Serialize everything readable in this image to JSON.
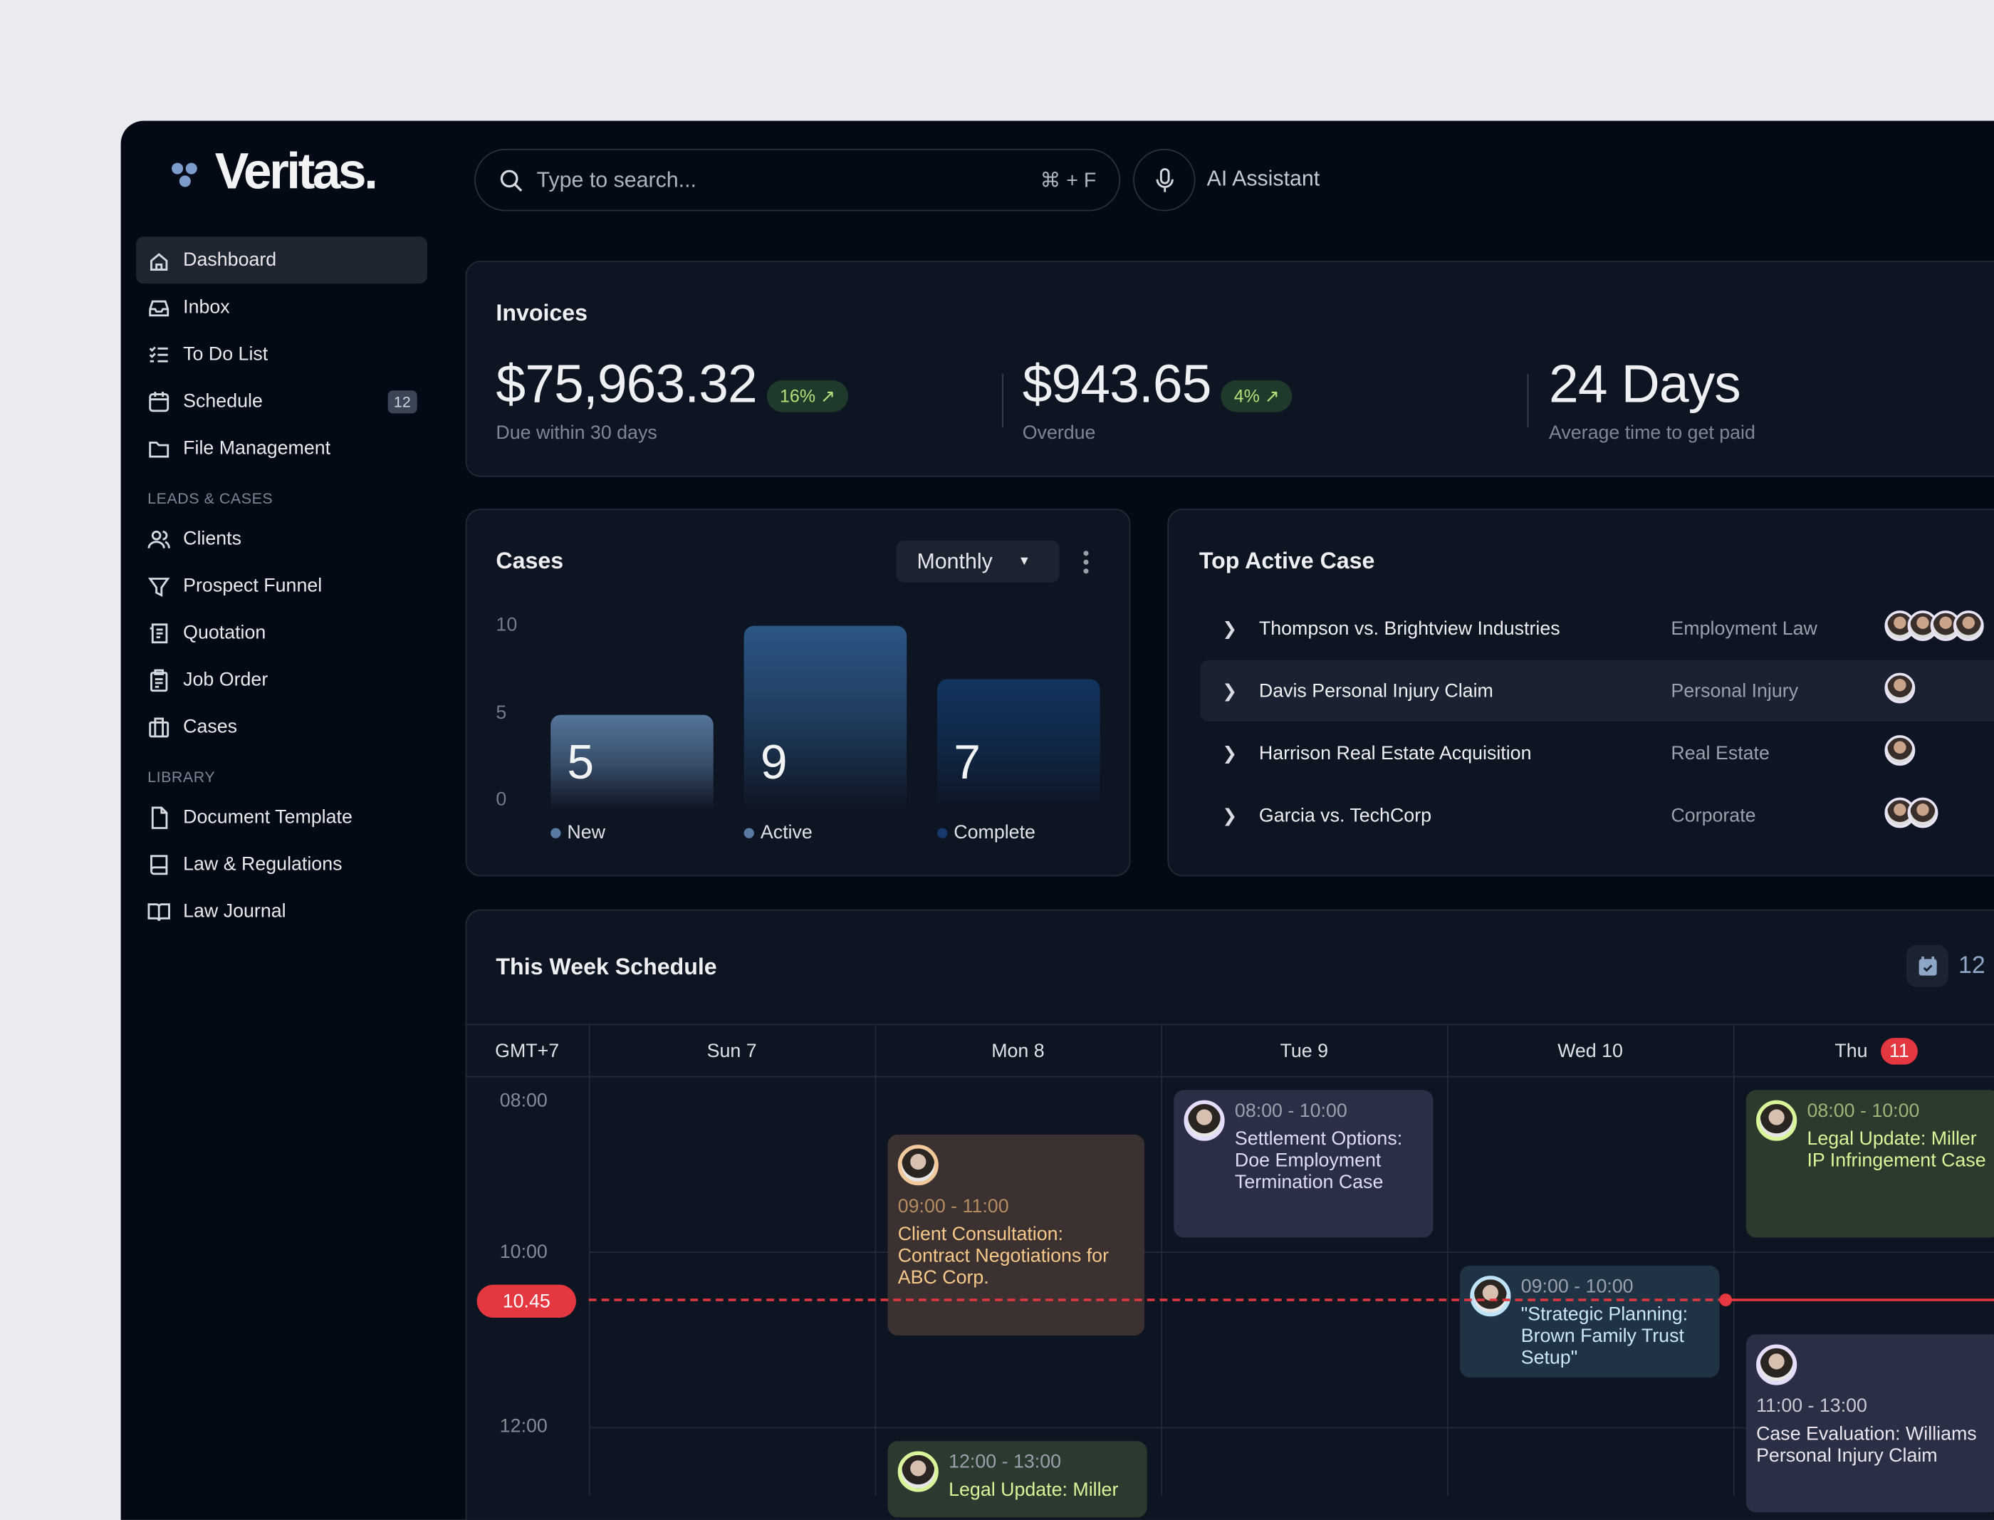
{
  "app": {
    "name": "Veritas."
  },
  "search": {
    "placeholder": "Type to search...",
    "shortcut": "⌘ + F"
  },
  "assistant": {
    "label": "AI Assistant",
    "icon": "microphone-icon"
  },
  "sidebar": {
    "items": [
      {
        "label": "Dashboard",
        "icon": "home-icon",
        "active": true
      },
      {
        "label": "Inbox",
        "icon": "inbox-icon"
      },
      {
        "label": "To Do List",
        "icon": "checklist-icon"
      },
      {
        "label": "Schedule",
        "icon": "calendar-icon",
        "badge": "12"
      },
      {
        "label": "File Management",
        "icon": "folder-icon"
      }
    ],
    "section_leads": "LEADS & CASES",
    "leads": [
      {
        "label": "Clients",
        "icon": "users-icon"
      },
      {
        "label": "Prospect Funnel",
        "icon": "funnel-icon"
      },
      {
        "label": "Quotation",
        "icon": "receipt-icon"
      },
      {
        "label": "Job Order",
        "icon": "clipboard-icon"
      },
      {
        "label": "Cases",
        "icon": "briefcase-icon"
      }
    ],
    "section_library": "LIBRARY",
    "library": [
      {
        "label": "Document Template",
        "icon": "document-icon"
      },
      {
        "label": "Law & Regulations",
        "icon": "book-icon"
      },
      {
        "label": "Law Journal",
        "icon": "open-book-icon"
      }
    ]
  },
  "invoices": {
    "title": "Invoices",
    "stats": [
      {
        "value": "$75,963.32",
        "change": "16%",
        "label": "Due within 30 days"
      },
      {
        "value": "$943.65",
        "change": "4%",
        "label": "Overdue"
      },
      {
        "value": "24 Days",
        "label": "Average time to get paid"
      }
    ],
    "accent": "#b4e07a"
  },
  "cases": {
    "title": "Cases",
    "period": "Monthly"
  },
  "chart_data": {
    "type": "bar",
    "title": "Cases",
    "categories": [
      "New",
      "Active",
      "Complete"
    ],
    "values": [
      5,
      9,
      7
    ],
    "yticks": [
      "10",
      "5",
      "0"
    ],
    "ylim": [
      0,
      10
    ],
    "colors": [
      "#55759c",
      "#2b5685",
      "#12345f"
    ],
    "grid": false,
    "legend": "bottom"
  },
  "top_cases": {
    "title": "Top Active Case",
    "rows": [
      {
        "name": "Thompson vs. Brightview Industries",
        "type": "Employment Law",
        "avatars": 4
      },
      {
        "name": "Davis Personal Injury Claim",
        "type": "Personal Injury",
        "avatars": 1
      },
      {
        "name": "Harrison Real Estate Acquisition",
        "type": "Real Estate",
        "avatars": 1
      },
      {
        "name": "Garcia vs. TechCorp",
        "type": "Corporate",
        "avatars": 2
      }
    ]
  },
  "schedule": {
    "title": "This Week Schedule",
    "count": "12",
    "timezone": "GMT+7",
    "days": [
      {
        "label": "Sun 7"
      },
      {
        "label": "Mon 8"
      },
      {
        "label": "Tue 9"
      },
      {
        "label": "Wed 10"
      },
      {
        "label": "Thu",
        "badge": "11"
      }
    ],
    "times": [
      "08:00",
      "10:00",
      "12:00"
    ],
    "now": "10.45",
    "events": [
      {
        "day": "Mon 8",
        "time": "09:00 - 11:00",
        "title": "Client Consultation: Contract Negotiations for ABC Corp.",
        "color": "#3a3130",
        "text": "#f6c98a"
      },
      {
        "day": "Mon 8",
        "time": "12:00 - 13:00",
        "title": "Legal Update: Miller",
        "color": "#2a3a2f",
        "text": "#d9f59a"
      },
      {
        "day": "Tue 9",
        "time": "08:00 - 10:00",
        "title": "Settlement Options: Doe Employment Termination Case",
        "color": "#2b2f45",
        "text": "#dcdcf5"
      },
      {
        "day": "Wed 10",
        "time": "09:00 - 10:00",
        "title": "\"Strategic Planning: Brown Family Trust Setup\"",
        "color": "#1f3344",
        "text": "#cde6f5"
      },
      {
        "day": "Thu",
        "time": "08:00 - 10:00",
        "title": "Legal Update: Miller IP Infringement Case",
        "color": "#2b3a2c",
        "text": "#d9f59a"
      },
      {
        "day": "Thu",
        "time": "11:00 - 13:00",
        "title": "Case Evaluation: Williams Personal Injury Claim",
        "color": "#2b2f45",
        "text": "#e6e8ee"
      }
    ]
  }
}
